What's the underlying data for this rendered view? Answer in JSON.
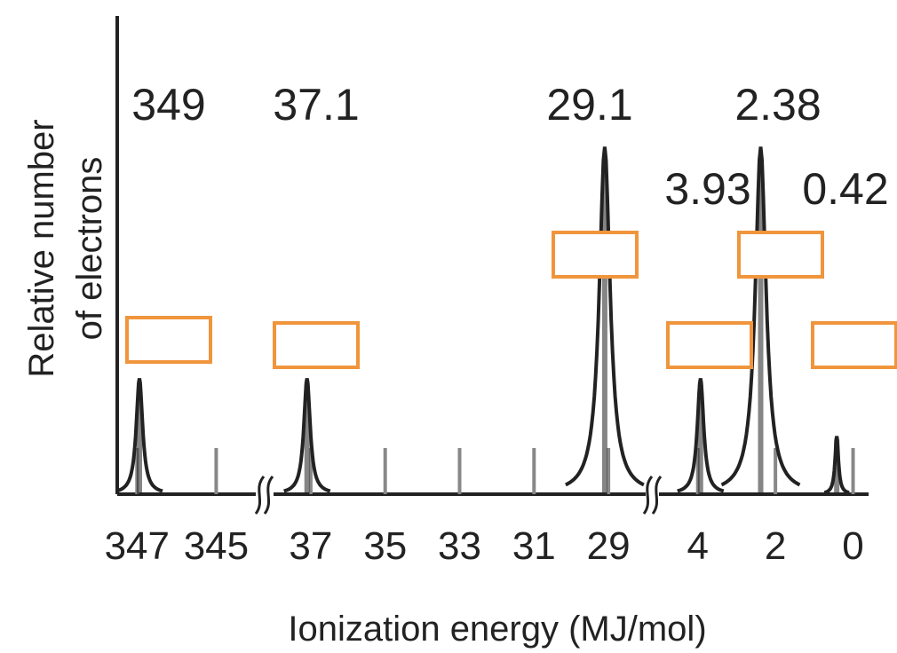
{
  "chart_data": {
    "type": "line",
    "title": "",
    "xlabel": "Ionization energy (MJ/mol)",
    "ylabel_lines": [
      "Relative number",
      "of electrons"
    ],
    "x_reversed": true,
    "axis_breaks": [
      [
        345,
        37
      ],
      [
        29,
        4
      ]
    ],
    "segments": [
      {
        "range": [
          347.5,
          344
        ],
        "ticks": [
          347,
          345
        ],
        "tick_labels": [
          "347",
          "345"
        ]
      },
      {
        "range": [
          38,
          28
        ],
        "ticks": [
          37,
          35,
          33,
          31,
          29
        ],
        "tick_labels": [
          "37",
          "35",
          "33",
          "31",
          "29"
        ]
      },
      {
        "range": [
          5,
          -0.4
        ],
        "ticks": [
          4,
          2,
          0
        ],
        "tick_labels": [
          "4",
          "2",
          "0"
        ]
      }
    ],
    "peaks": [
      {
        "energy": 349,
        "label": "349",
        "relative_height": 1
      },
      {
        "energy": 37.1,
        "label": "37.1",
        "relative_height": 1
      },
      {
        "energy": 29.1,
        "label": "29.1",
        "relative_height": 3
      },
      {
        "energy": 3.93,
        "label": "3.93",
        "relative_height": 1
      },
      {
        "energy": 2.38,
        "label": "2.38",
        "relative_height": 3
      },
      {
        "energy": 0.42,
        "label": "0.42",
        "relative_height": 0.5
      }
    ],
    "answer_boxes_count": 6,
    "colors": {
      "curve": "#222222",
      "axis": "#222222",
      "box": "#f0953c"
    }
  }
}
